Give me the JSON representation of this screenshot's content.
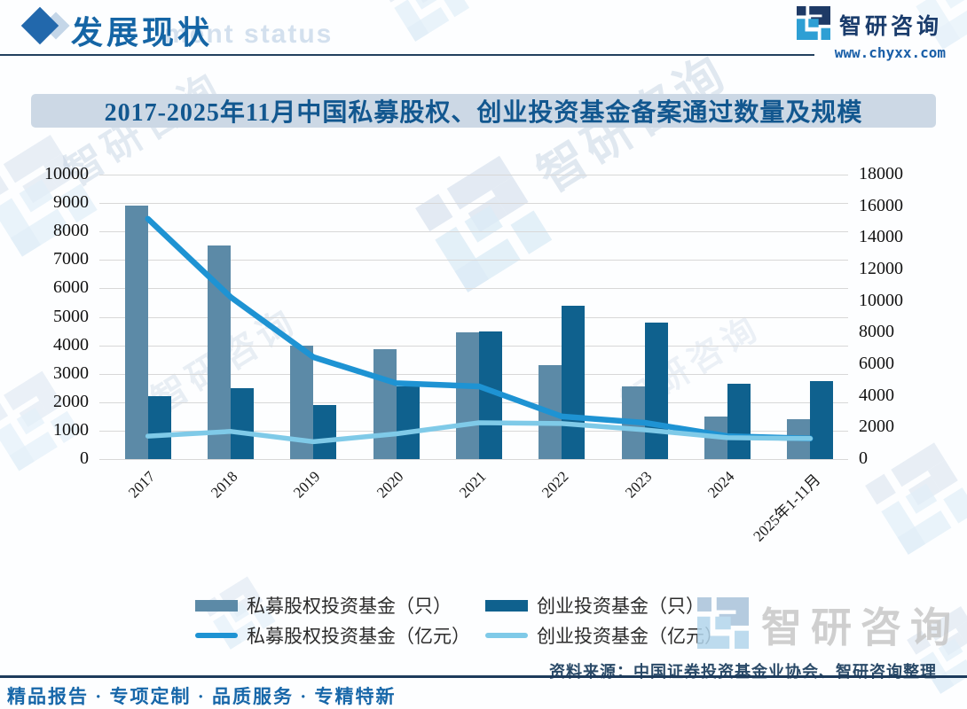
{
  "header": {
    "title": "发展现状",
    "title_watermark": "ment status",
    "brand_name": "智研咨询",
    "brand_url": "www.chyxx.com"
  },
  "chart": {
    "title": "2017-2025年11月中国私募股权、创业投资基金备案通过数量及规模"
  },
  "chart_data": {
    "type": "combo",
    "categories": [
      "2017",
      "2018",
      "2019",
      "2020",
      "2021",
      "2022",
      "2023",
      "2024",
      "2025年1-11月"
    ],
    "left_axis": {
      "min": 0,
      "max": 10000,
      "step": 1000
    },
    "right_axis": {
      "min": 0,
      "max": 18000,
      "step": 2000
    },
    "grid": true,
    "legend_position": "bottom",
    "series": [
      {
        "name": "私募股权投资基金（只）",
        "type": "bar",
        "axis": "left",
        "color": "#5c8aa7",
        "values": [
          8900,
          7500,
          4000,
          3850,
          4450,
          3300,
          2550,
          1500,
          1400
        ]
      },
      {
        "name": "创业投资基金（只）",
        "type": "bar",
        "axis": "left",
        "color": "#0f618e",
        "values": [
          2200,
          2500,
          1900,
          2550,
          4500,
          5400,
          4800,
          2650,
          2750
        ]
      },
      {
        "name": "私募股权投资基金（亿元）",
        "type": "line",
        "axis": "right",
        "color": "#1e93d3",
        "values": [
          15200,
          10250,
          6450,
          4800,
          4600,
          2700,
          2300,
          1450,
          1300
        ]
      },
      {
        "name": "创业投资基金（亿元）",
        "type": "line",
        "axis": "right",
        "color": "#7fcae8",
        "values": [
          1450,
          1750,
          1100,
          1600,
          2300,
          2250,
          1850,
          1350,
          1300
        ]
      }
    ]
  },
  "source": {
    "label": "资料来源：中国证券投资基金业协会、智研咨询整理"
  },
  "footer": {
    "tagline": "精品报告 · 专项定制 · 品质服务 · 专精特新"
  },
  "watermark": {
    "text": "智研咨询"
  }
}
